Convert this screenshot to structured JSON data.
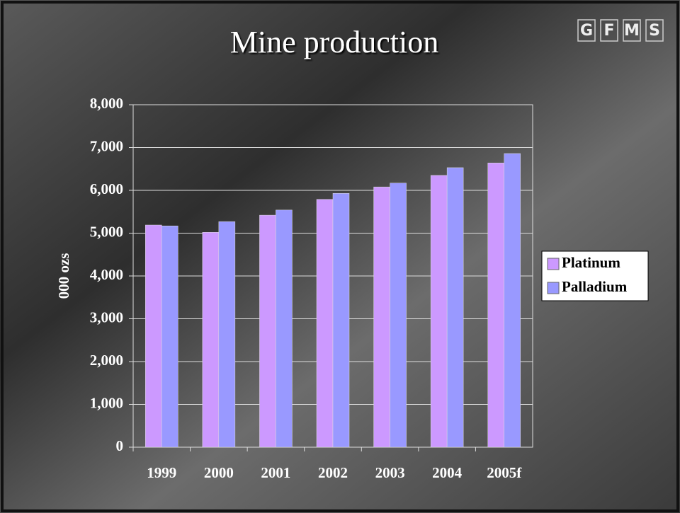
{
  "chart_data": {
    "type": "bar",
    "title": "Mine production",
    "logo": [
      "G",
      "F",
      "M",
      "S"
    ],
    "y_label": "000 ozs",
    "categories": [
      "1999",
      "2000",
      "2001",
      "2002",
      "2003",
      "2004",
      "2005f"
    ],
    "series": [
      {
        "name": "Platinum",
        "color": "#cc99ff",
        "values": [
          5190,
          5020,
          5420,
          5790,
          6080,
          6350,
          6640
        ]
      },
      {
        "name": "Palladium",
        "color": "#9999ff",
        "values": [
          5170,
          5270,
          5540,
          5930,
          6170,
          6530,
          6860
        ]
      }
    ],
    "ylim": [
      0,
      8000
    ],
    "yticks": [
      0,
      {
        "value": 1000,
        "label": "1,000"
      },
      {
        "value": 2000,
        "label": "2,000"
      },
      {
        "value": 3000,
        "label": "3,000"
      },
      {
        "value": 4000,
        "label": "4,000"
      },
      {
        "value": 5000,
        "label": "5,000"
      },
      {
        "value": 6000,
        "label": "6,000"
      },
      {
        "value": 7000,
        "label": "7,000"
      },
      {
        "value": 8000,
        "label": "8,000"
      }
    ],
    "grid": true,
    "legend": "right"
  }
}
